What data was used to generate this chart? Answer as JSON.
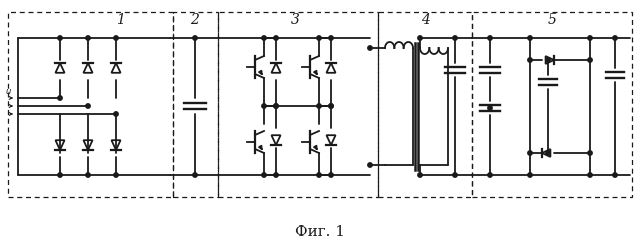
{
  "fig_width": 6.4,
  "fig_height": 2.44,
  "dpi": 100,
  "bg_color": "#ffffff",
  "line_color": "#1a1a1a",
  "line_width": 1.3,
  "caption": "Фиг. 1",
  "caption_fontsize": 11
}
